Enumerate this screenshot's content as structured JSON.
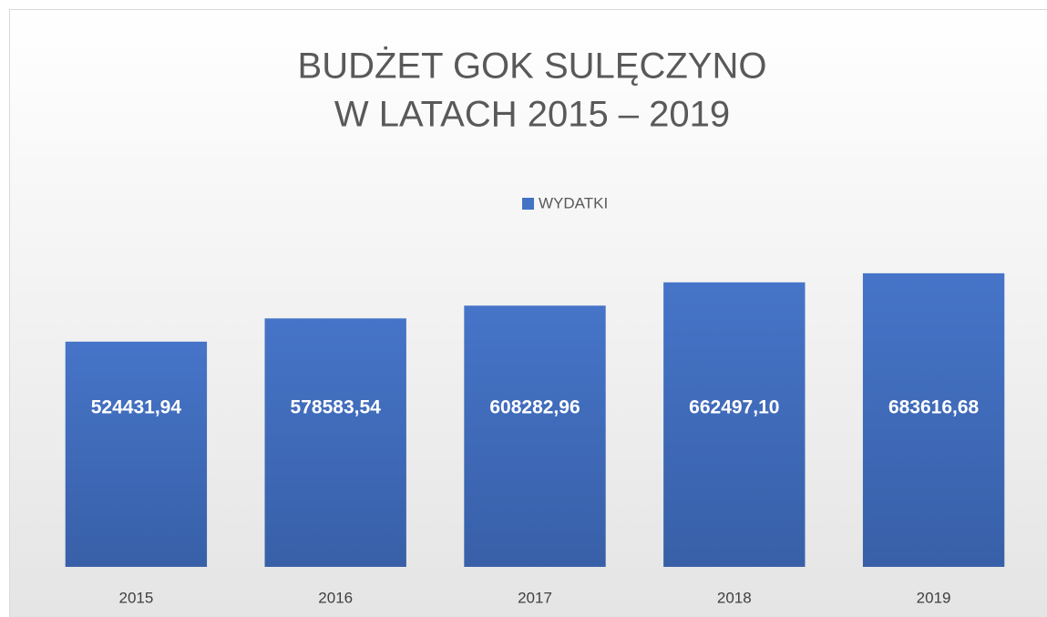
{
  "chart_data": {
    "type": "bar",
    "title": [
      "BUDŻET GOK SULĘCZYNO",
      "W LATACH 2015 – 2019"
    ],
    "categories": [
      "2015",
      "2016",
      "2017",
      "2018",
      "2019"
    ],
    "series": [
      {
        "name": "WYDATKI",
        "color": "#4472c4",
        "values": [
          524431.94,
          578583.54,
          608282.96,
          662497.1,
          683616.68
        ],
        "value_labels": [
          "524431,94",
          "578583,54",
          "608282,96",
          "662497,10",
          "683616,68"
        ]
      }
    ],
    "ylim": [
      0,
      800000
    ]
  }
}
